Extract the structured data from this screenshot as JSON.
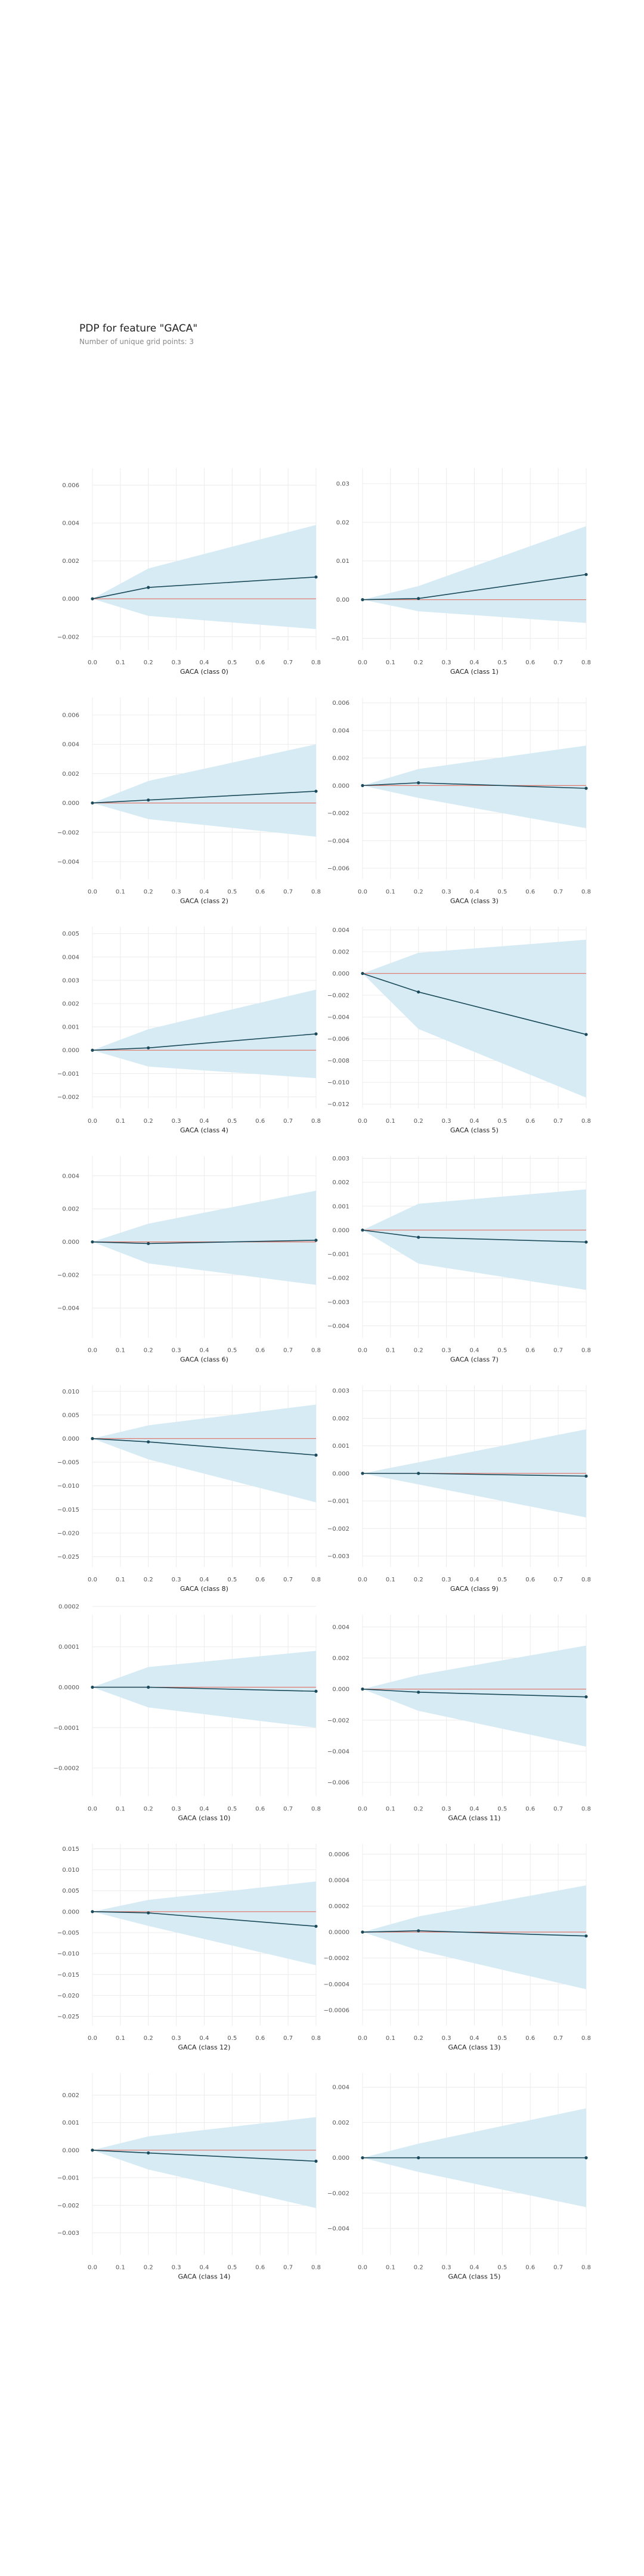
{
  "header": {
    "title": "PDP for feature \"GACA\"",
    "subtitle": "Number of unique grid points: 3"
  },
  "colors": {
    "band": "#d6ebf4",
    "line": "#1a4a5a",
    "zero": "#e07b6f",
    "grid": "#ececec",
    "tick": "#555555"
  },
  "chart_data": [
    {
      "type": "line",
      "xlabel": "GACA (class 0)",
      "x": [
        0.0,
        0.2,
        0.8
      ],
      "y": [
        0.0,
        0.0006,
        0.00115
      ],
      "band_upper": [
        0.0,
        0.0016,
        0.0039
      ],
      "band_lower": [
        0.0,
        -0.0009,
        -0.0016
      ],
      "ylim": [
        -0.0027,
        0.0069
      ],
      "yticks": [
        "0.006",
        "0.004",
        "0.002",
        "0.000",
        "−0.002"
      ],
      "ytick_values": [
        0.006,
        0.004,
        0.002,
        0.0,
        -0.002
      ],
      "xticks": [
        "0.0",
        "0.1",
        "0.2",
        "0.3",
        "0.4",
        "0.5",
        "0.6",
        "0.7",
        "0.8"
      ]
    },
    {
      "type": "line",
      "xlabel": "GACA (class 1)",
      "x": [
        0.0,
        0.2,
        0.8
      ],
      "y": [
        0.0,
        0.0003,
        0.0065
      ],
      "band_upper": [
        0.0,
        0.0035,
        0.019
      ],
      "band_lower": [
        0.0,
        -0.003,
        -0.006
      ],
      "ylim": [
        -0.013,
        0.034
      ],
      "yticks": [
        "0.03",
        "0.02",
        "0.01",
        "0.00",
        "−0.01"
      ],
      "ytick_values": [
        0.03,
        0.02,
        0.01,
        0.0,
        -0.01
      ],
      "xticks": [
        "0.0",
        "0.1",
        "0.2",
        "0.3",
        "0.4",
        "0.5",
        "0.6",
        "0.7",
        "0.8"
      ]
    },
    {
      "type": "line",
      "xlabel": "GACA (class 2)",
      "x": [
        0.0,
        0.2,
        0.8
      ],
      "y": [
        0.0,
        0.0002,
        0.0008
      ],
      "band_upper": [
        0.0,
        0.0015,
        0.004
      ],
      "band_lower": [
        0.0,
        -0.0011,
        -0.0023
      ],
      "ylim": [
        -0.0052,
        0.0072
      ],
      "yticks": [
        "0.006",
        "0.004",
        "0.002",
        "0.000",
        "−0.002",
        "−0.004"
      ],
      "ytick_values": [
        0.006,
        0.004,
        0.002,
        0.0,
        -0.002,
        -0.004
      ],
      "xticks": [
        "0.0",
        "0.1",
        "0.2",
        "0.3",
        "0.4",
        "0.5",
        "0.6",
        "0.7",
        "0.8"
      ]
    },
    {
      "type": "line",
      "xlabel": "GACA (class 3)",
      "x": [
        0.0,
        0.2,
        0.8
      ],
      "y": [
        0.0,
        0.0002,
        -0.0002
      ],
      "band_upper": [
        0.0,
        0.0012,
        0.0029
      ],
      "band_lower": [
        0.0,
        -0.0009,
        -0.0031
      ],
      "ylim": [
        -0.0068,
        0.0064
      ],
      "yticks": [
        "0.006",
        "0.004",
        "0.002",
        "0.000",
        "−0.002",
        "−0.004",
        "−0.006"
      ],
      "ytick_values": [
        0.006,
        0.004,
        0.002,
        0.0,
        -0.002,
        -0.004,
        -0.006
      ],
      "xticks": [
        "0.0",
        "0.1",
        "0.2",
        "0.3",
        "0.4",
        "0.5",
        "0.6",
        "0.7",
        "0.8"
      ]
    },
    {
      "type": "line",
      "xlabel": "GACA (class 4)",
      "x": [
        0.0,
        0.2,
        0.8
      ],
      "y": [
        0.0,
        0.0001,
        0.0007
      ],
      "band_upper": [
        0.0,
        0.0009,
        0.0026
      ],
      "band_lower": [
        0.0,
        -0.0007,
        -0.0012
      ],
      "ylim": [
        -0.0025,
        0.0053
      ],
      "yticks": [
        "0.005",
        "0.004",
        "0.003",
        "0.002",
        "0.001",
        "0.000",
        "−0.001",
        "−0.002"
      ],
      "ytick_values": [
        0.005,
        0.004,
        0.003,
        0.002,
        0.001,
        0.0,
        -0.001,
        -0.002
      ],
      "xticks": [
        "0.0",
        "0.1",
        "0.2",
        "0.3",
        "0.4",
        "0.5",
        "0.6",
        "0.7",
        "0.8"
      ]
    },
    {
      "type": "line",
      "xlabel": "GACA (class 5)",
      "x": [
        0.0,
        0.2,
        0.8
      ],
      "y": [
        0.0,
        -0.0017,
        -0.0056
      ],
      "band_upper": [
        0.0,
        0.0019,
        0.0031
      ],
      "band_lower": [
        0.0,
        -0.0051,
        -0.0114
      ],
      "ylim": [
        -0.0124,
        0.0043
      ],
      "yticks": [
        "0.004",
        "0.002",
        "0.000",
        "−0.002",
        "−0.004",
        "−0.006",
        "−0.008",
        "−0.010",
        "−0.012"
      ],
      "ytick_values": [
        0.004,
        0.002,
        0.0,
        -0.002,
        -0.004,
        -0.006,
        -0.008,
        -0.01,
        -0.012
      ],
      "xticks": [
        "0.0",
        "0.1",
        "0.2",
        "0.3",
        "0.4",
        "0.5",
        "0.6",
        "0.7",
        "0.8"
      ]
    },
    {
      "type": "line",
      "xlabel": "GACA (class 6)",
      "x": [
        0.0,
        0.2,
        0.8
      ],
      "y": [
        0.0,
        -0.0001,
        0.0001
      ],
      "band_upper": [
        0.0,
        0.0011,
        0.0031
      ],
      "band_lower": [
        0.0,
        -0.0013,
        -0.0026
      ],
      "ylim": [
        -0.0058,
        0.0052
      ],
      "yticks": [
        "0.004",
        "0.002",
        "0.000",
        "−0.002",
        "−0.004"
      ],
      "ytick_values": [
        0.004,
        0.002,
        0.0,
        -0.002,
        -0.004
      ],
      "xticks": [
        "0.0",
        "0.1",
        "0.2",
        "0.3",
        "0.4",
        "0.5",
        "0.6",
        "0.7",
        "0.8"
      ]
    },
    {
      "type": "line",
      "xlabel": "GACA (class 7)",
      "x": [
        0.0,
        0.2,
        0.8
      ],
      "y": [
        0.0,
        -0.0003,
        -0.0005
      ],
      "band_upper": [
        0.0,
        0.0011,
        0.0017
      ],
      "band_lower": [
        0.0,
        -0.0014,
        -0.0025
      ],
      "ylim": [
        -0.0045,
        0.0031
      ],
      "yticks": [
        "0.003",
        "0.002",
        "0.001",
        "0.000",
        "−0.001",
        "−0.002",
        "−0.003",
        "−0.004"
      ],
      "ytick_values": [
        0.003,
        0.002,
        0.001,
        0.0,
        -0.001,
        -0.002,
        -0.003,
        -0.004
      ],
      "xticks": [
        "0.0",
        "0.1",
        "0.2",
        "0.3",
        "0.4",
        "0.5",
        "0.6",
        "0.7",
        "0.8"
      ]
    },
    {
      "type": "line",
      "xlabel": "GACA (class 8)",
      "x": [
        0.0,
        0.2,
        0.8
      ],
      "y": [
        0.0,
        -0.0007,
        -0.0035
      ],
      "band_upper": [
        0.0,
        0.0028,
        0.0072
      ],
      "band_lower": [
        0.0,
        -0.0044,
        -0.0135
      ],
      "ylim": [
        -0.0272,
        0.0113
      ],
      "yticks": [
        "0.010",
        "0.005",
        "0.000",
        "−0.005",
        "−0.010",
        "−0.015",
        "−0.020",
        "−0.025"
      ],
      "ytick_values": [
        0.01,
        0.005,
        0.0,
        -0.005,
        -0.01,
        -0.015,
        -0.02,
        -0.025
      ],
      "xticks": [
        "0.0",
        "0.1",
        "0.2",
        "0.3",
        "0.4",
        "0.5",
        "0.6",
        "0.7",
        "0.8"
      ]
    },
    {
      "type": "line",
      "xlabel": "GACA (class 9)",
      "x": [
        0.0,
        0.2,
        0.8
      ],
      "y": [
        0.0,
        0.0,
        -0.0001
      ],
      "band_upper": [
        0.0,
        0.0004,
        0.0016
      ],
      "band_lower": [
        0.0,
        -0.0004,
        -0.0016
      ],
      "ylim": [
        -0.0034,
        0.0032
      ],
      "yticks": [
        "0.003",
        "0.002",
        "0.001",
        "0.000",
        "−0.001",
        "−0.002",
        "−0.003"
      ],
      "ytick_values": [
        0.003,
        0.002,
        0.001,
        0.0,
        -0.001,
        -0.002,
        -0.003
      ],
      "xticks": [
        "0.0",
        "0.1",
        "0.2",
        "0.3",
        "0.4",
        "0.5",
        "0.6",
        "0.7",
        "0.8"
      ]
    },
    {
      "type": "line",
      "xlabel": "GACA (class 10)",
      "x": [
        0.0,
        0.2,
        0.8
      ],
      "y": [
        0.0,
        0.0,
        -1e-05
      ],
      "band_upper": [
        0.0,
        5e-05,
        9e-05
      ],
      "band_lower": [
        0.0,
        -5e-05,
        -0.0001
      ],
      "ylim": [
        -0.00027,
        0.00018
      ],
      "yticks": [
        "0.0002",
        "0.0001",
        "0.0000",
        "−0.0001",
        "−0.0002"
      ],
      "ytick_values": [
        0.0002,
        0.0001,
        0.0,
        -0.0001,
        -0.0002
      ],
      "xticks": [
        "0.0",
        "0.1",
        "0.2",
        "0.3",
        "0.4",
        "0.5",
        "0.6",
        "0.7",
        "0.8"
      ]
    },
    {
      "type": "line",
      "xlabel": "GACA (class 11)",
      "x": [
        0.0,
        0.2,
        0.8
      ],
      "y": [
        0.0,
        -0.0002,
        -0.0005
      ],
      "band_upper": [
        0.0,
        0.0009,
        0.0028
      ],
      "band_lower": [
        0.0,
        -0.0014,
        -0.0037
      ],
      "ylim": [
        -0.0069,
        0.0048
      ],
      "yticks": [
        "0.004",
        "0.002",
        "0.000",
        "−0.002",
        "−0.004",
        "−0.006"
      ],
      "ytick_values": [
        0.004,
        0.002,
        0.0,
        -0.002,
        -0.004,
        -0.006
      ],
      "xticks": [
        "0.0",
        "0.1",
        "0.2",
        "0.3",
        "0.4",
        "0.5",
        "0.6",
        "0.7",
        "0.8"
      ]
    },
    {
      "type": "line",
      "xlabel": "GACA (class 12)",
      "x": [
        0.0,
        0.2,
        0.8
      ],
      "y": [
        0.0,
        -0.0003,
        -0.0035
      ],
      "band_upper": [
        0.0,
        0.0028,
        0.0072
      ],
      "band_lower": [
        0.0,
        -0.0034,
        -0.0128
      ],
      "ylim": [
        -0.0272,
        0.0162
      ],
      "yticks": [
        "0.015",
        "0.010",
        "0.005",
        "0.000",
        "−0.005",
        "−0.010",
        "−0.015",
        "−0.020",
        "−0.025"
      ],
      "ytick_values": [
        0.015,
        0.01,
        0.005,
        0.0,
        -0.005,
        -0.01,
        -0.015,
        -0.02,
        -0.025
      ],
      "xticks": [
        "0.0",
        "0.1",
        "0.2",
        "0.3",
        "0.4",
        "0.5",
        "0.6",
        "0.7",
        "0.8"
      ]
    },
    {
      "type": "line",
      "xlabel": "GACA (class 13)",
      "x": [
        0.0,
        0.2,
        0.8
      ],
      "y": [
        0.0,
        1e-05,
        -3e-05
      ],
      "band_upper": [
        0.0,
        0.00012,
        0.00036
      ],
      "band_lower": [
        0.0,
        -0.00014,
        -0.00044
      ],
      "ylim": [
        -0.00072,
        0.00068
      ],
      "yticks": [
        "0.0006",
        "0.0004",
        "0.0002",
        "0.0000",
        "−0.0002",
        "−0.0004",
        "−0.0006"
      ],
      "ytick_values": [
        0.0006,
        0.0004,
        0.0002,
        0.0,
        -0.0002,
        -0.0004,
        -0.0006
      ],
      "xticks": [
        "0.0",
        "0.1",
        "0.2",
        "0.3",
        "0.4",
        "0.5",
        "0.6",
        "0.7",
        "0.8"
      ]
    },
    {
      "type": "line",
      "xlabel": "GACA (class 14)",
      "x": [
        0.0,
        0.2,
        0.8
      ],
      "y": [
        0.0,
        -0.0001,
        -0.0004
      ],
      "band_upper": [
        0.0,
        0.0005,
        0.0012
      ],
      "band_lower": [
        0.0,
        -0.0007,
        -0.0021
      ],
      "ylim": [
        -0.0038,
        0.0028
      ],
      "yticks": [
        "0.002",
        "0.001",
        "0.000",
        "−0.001",
        "−0.002",
        "−0.003"
      ],
      "ytick_values": [
        0.002,
        0.001,
        0.0,
        -0.001,
        -0.002,
        -0.003
      ],
      "xticks": [
        "0.0",
        "0.1",
        "0.2",
        "0.3",
        "0.4",
        "0.5",
        "0.6",
        "0.7",
        "0.8"
      ]
    },
    {
      "type": "line",
      "xlabel": "GACA (class 15)",
      "x": [
        0.0,
        0.2,
        0.8
      ],
      "y": [
        0.0,
        0.0,
        0.0
      ],
      "band_upper": [
        0.0,
        0.0008,
        0.0028
      ],
      "band_lower": [
        0.0,
        -0.0008,
        -0.0028
      ],
      "ylim": [
        -0.0055,
        0.0048
      ],
      "yticks": [
        "0.004",
        "0.002",
        "0.000",
        "−0.002",
        "−0.004"
      ],
      "ytick_values": [
        0.004,
        0.002,
        0.0,
        -0.002,
        -0.004
      ],
      "xticks": [
        "0.0",
        "0.1",
        "0.2",
        "0.3",
        "0.4",
        "0.5",
        "0.6",
        "0.7",
        "0.8"
      ]
    }
  ]
}
